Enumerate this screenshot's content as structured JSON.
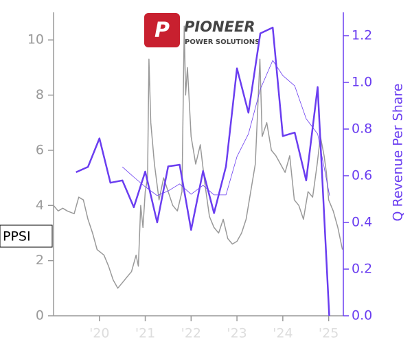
{
  "logo": {
    "name": "PIONEER",
    "tagline": "POWER SOLUTIONS"
  },
  "ticker": "PPSI",
  "chart_data": {
    "type": "line",
    "y2label": "Q Revenue Per Share",
    "xlim": [
      2019.0,
      2025.32
    ],
    "ylim": [
      0,
      11
    ],
    "y2lim": [
      0,
      1.3
    ],
    "xticks": [
      {
        "value": 2020,
        "label": "'20"
      },
      {
        "value": 2021,
        "label": "'21"
      },
      {
        "value": 2022,
        "label": "'22"
      },
      {
        "value": 2023,
        "label": "'23"
      },
      {
        "value": 2024,
        "label": "'24"
      },
      {
        "value": 2025,
        "label": "'25"
      }
    ],
    "yticks": [
      0,
      2,
      4,
      6,
      8,
      10
    ],
    "y2ticks": [
      {
        "value": 0,
        "label": "0.0"
      },
      {
        "value": 0.2,
        "label": "0.2"
      },
      {
        "value": 0.4,
        "label": "0.4"
      },
      {
        "value": 0.6,
        "label": "0.6"
      },
      {
        "value": 0.8,
        "label": "0.8"
      },
      {
        "value": 1.0,
        "label": "1.0"
      },
      {
        "value": 1.2,
        "label": "1.2"
      }
    ],
    "series": [
      {
        "color": "#999999",
        "width": 1.5,
        "axis": "y",
        "x": [
          2019.0,
          2019.1,
          2019.2,
          2019.3,
          2019.45,
          2019.55,
          2019.65,
          2019.75,
          2019.85,
          2019.95,
          2020.1,
          2020.2,
          2020.3,
          2020.4,
          2020.5,
          2020.6,
          2020.7,
          2020.8,
          2020.85,
          2020.9,
          2020.95,
          2021.0,
          2021.05,
          2021.08,
          2021.12,
          2021.2,
          2021.3,
          2021.4,
          2021.5,
          2021.6,
          2021.7,
          2021.8,
          2021.85,
          2021.88,
          2021.92,
          2022.0,
          2022.1,
          2022.2,
          2022.3,
          2022.4,
          2022.5,
          2022.6,
          2022.7,
          2022.8,
          2022.9,
          2023.0,
          2023.1,
          2023.2,
          2023.3,
          2023.4,
          2023.5,
          2023.55,
          2023.65,
          2023.75,
          2023.85,
          2023.95,
          2024.05,
          2024.15,
          2024.25,
          2024.35,
          2024.45,
          2024.55,
          2024.65,
          2024.75,
          2024.82,
          2024.9,
          2024.95,
          2025.0,
          2025.1,
          2025.2,
          2025.3
        ],
        "values": [
          4.0,
          3.8,
          3.9,
          3.8,
          3.7,
          4.3,
          4.2,
          3.5,
          3.0,
          2.4,
          2.2,
          1.8,
          1.3,
          1.0,
          1.2,
          1.4,
          1.6,
          2.2,
          1.8,
          4.0,
          3.2,
          4.5,
          5.0,
          9.3,
          7.0,
          5.5,
          4.2,
          5.0,
          4.5,
          4.0,
          3.8,
          4.5,
          10.5,
          8.0,
          9.0,
          6.5,
          5.5,
          6.2,
          4.8,
          3.6,
          3.2,
          3.0,
          3.5,
          2.8,
          2.6,
          2.7,
          3.0,
          3.5,
          4.5,
          5.5,
          9.3,
          6.5,
          7.0,
          6.0,
          5.8,
          5.5,
          5.2,
          5.8,
          4.2,
          4.0,
          3.5,
          4.5,
          4.3,
          5.5,
          6.5,
          5.8,
          5.2,
          4.2,
          3.8,
          3.2,
          2.4
        ]
      },
      {
        "color": "#6a3df0",
        "width": 0.8,
        "axis": "y2",
        "x": [
          2020.5,
          2020.75,
          2021.0,
          2021.26,
          2021.5,
          2021.75,
          2022.0,
          2022.26,
          2022.5,
          2022.76,
          2023.0,
          2023.25,
          2023.51,
          2023.78,
          2024.0,
          2024.26,
          2024.51,
          2024.76,
          2025.02
        ],
        "values": [
          0.638,
          0.594,
          0.553,
          0.515,
          0.535,
          0.565,
          0.521,
          0.559,
          0.518,
          0.518,
          0.682,
          0.779,
          0.971,
          1.094,
          1.029,
          0.985,
          0.844,
          0.779,
          0.515
        ]
      },
      {
        "color": "#6a3df0",
        "width": 2.5,
        "axis": "y2",
        "x": [
          2019.49,
          2019.75,
          2020.0,
          2020.24,
          2020.5,
          2020.75,
          2021.0,
          2021.26,
          2021.5,
          2021.75,
          2022.0,
          2022.26,
          2022.5,
          2022.76,
          2023.0,
          2023.25,
          2023.51,
          2023.78,
          2024.0,
          2024.26,
          2024.51,
          2024.76,
          2025.02
        ],
        "values": [
          0.615,
          0.638,
          0.76,
          0.57,
          0.58,
          0.465,
          0.618,
          0.4,
          0.64,
          0.647,
          0.368,
          0.62,
          0.44,
          0.64,
          1.06,
          0.87,
          1.21,
          1.235,
          0.77,
          0.785,
          0.58,
          0.98,
          -0.03
        ]
      }
    ]
  }
}
